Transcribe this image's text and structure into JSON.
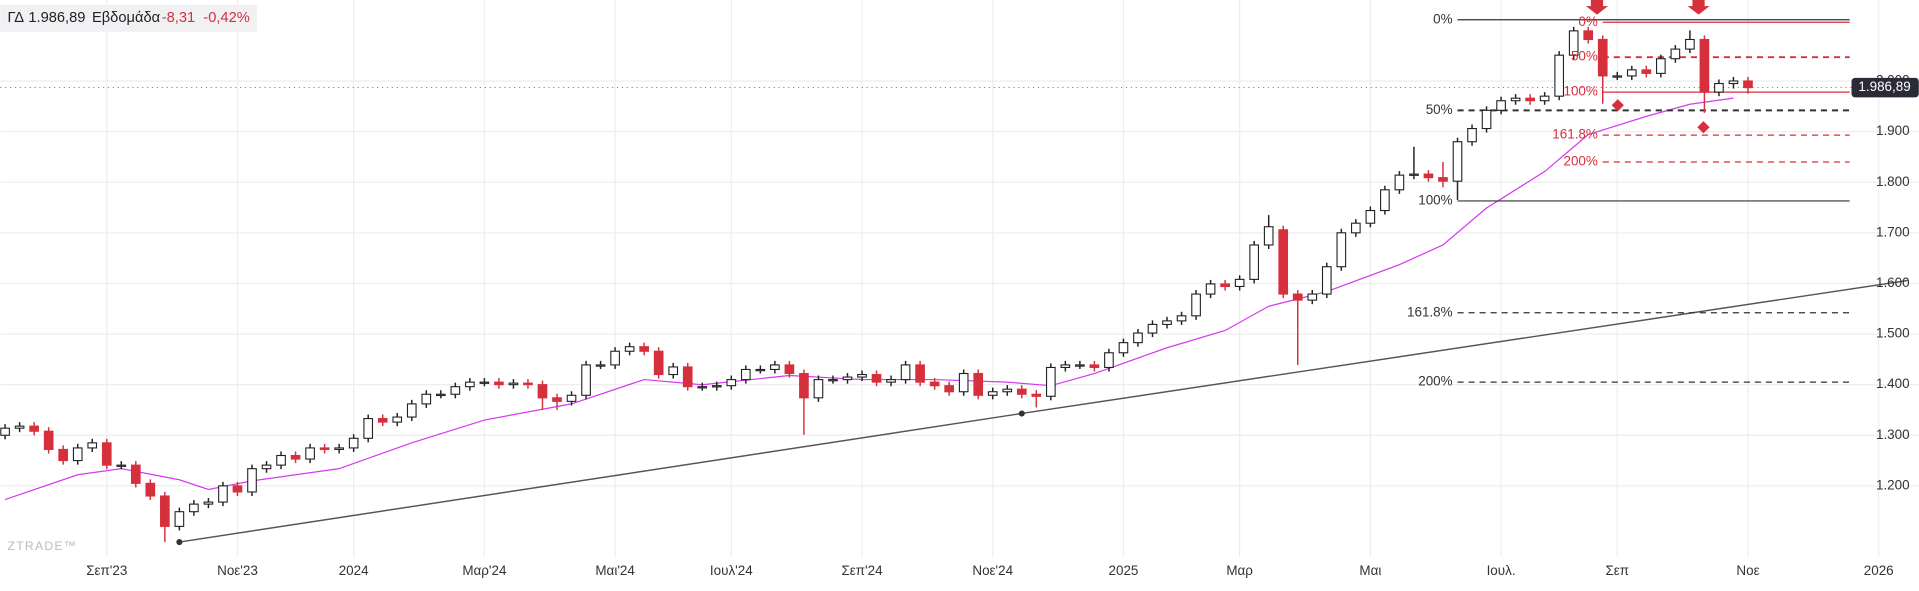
{
  "chart_data": {
    "type": "candlestick",
    "symbol": "ΓΔ",
    "last": {
      "value": 1986.89,
      "label": "1.986,89"
    },
    "period": "Εβδομάδα",
    "change": {
      "value": -8.31,
      "label": "-8,31"
    },
    "change_pct": {
      "value": -0.42,
      "label": "-0,42%"
    },
    "watermark": "ZTRADE™",
    "categories": [
      null,
      null,
      null,
      null,
      null,
      null,
      null,
      "Σεπ'23",
      null,
      null,
      null,
      null,
      null,
      null,
      null,
      null,
      "Νοε'23",
      null,
      null,
      null,
      null,
      null,
      null,
      null,
      "2024",
      null,
      null,
      null,
      null,
      null,
      null,
      null,
      null,
      "Μαρ'24",
      null,
      null,
      null,
      null,
      null,
      null,
      null,
      null,
      "Μαι'24",
      null,
      null,
      null,
      null,
      null,
      null,
      null,
      "Ιουλ'24",
      null,
      null,
      null,
      null,
      null,
      null,
      null,
      null,
      "Σεπ'24",
      null,
      null,
      null,
      null,
      null,
      null,
      null,
      null,
      "Νοε'24",
      null,
      null,
      null,
      null,
      null,
      null,
      null,
      null,
      "2025",
      null,
      null,
      null,
      null,
      null,
      null,
      null,
      "Μαρ",
      null,
      null,
      null,
      null,
      null,
      null,
      null,
      null,
      "Μαι",
      null,
      null,
      null,
      null,
      null,
      null,
      null,
      null,
      "Ιουλ.",
      null,
      null,
      null,
      null,
      null,
      null,
      null,
      "Σεπ",
      null,
      null,
      null,
      null,
      null,
      null,
      null,
      null,
      "Νοε",
      null,
      null,
      null,
      null,
      null,
      null,
      null,
      null,
      "2026",
      null,
      null
    ],
    "open": [
      1300,
      1314,
      1318,
      1308,
      1272,
      1250,
      1275,
      1285,
      1241,
      1241,
      1205,
      1180,
      1120,
      1149,
      1164,
      1168,
      1200,
      1188,
      1234,
      1241,
      1260,
      1253,
      1275,
      1272,
      1275,
      1294,
      1333,
      1326,
      1336,
      1362,
      1381,
      1381,
      1396,
      1405,
      1405,
      1400,
      1403,
      1400,
      1374,
      1367,
      1379,
      1439,
      1439,
      1466,
      1475,
      1466,
      1420,
      1435,
      1396,
      1396,
      1398,
      1410,
      1430,
      1430,
      1439,
      1422,
      1374,
      1410,
      1410,
      1415,
      1420,
      1405,
      1410,
      1439,
      1405,
      1398,
      1386,
      1422,
      1379,
      1386,
      1391,
      1381,
      1377,
      1434,
      1439,
      1439,
      1434,
      1463,
      1483,
      1502,
      1519,
      1526,
      1536,
      1579,
      1599,
      1594,
      1608,
      1676,
      1706,
      1579,
      1567,
      1579,
      1633,
      1700,
      1719,
      1744,
      1785,
      1814,
      1816,
      1809,
      1802,
      1880,
      1906,
      1942,
      1961,
      1966,
      1961,
      1970,
      2051,
      2099,
      2082,
      2010,
      2010,
      2022,
      2015,
      2044,
      2063,
      2082,
      1978,
      1995,
      2000,
      null,
      null,
      null,
      null,
      null,
      null,
      null,
      null,
      null,
      null,
      null
    ],
    "high": [
      1322,
      1326,
      1326,
      1316,
      1280,
      1283,
      1293,
      1293,
      1249,
      1249,
      1213,
      1188,
      1157,
      1172,
      1176,
      1208,
      1208,
      1242,
      1249,
      1268,
      1268,
      1283,
      1283,
      1283,
      1302,
      1341,
      1341,
      1344,
      1370,
      1389,
      1389,
      1404,
      1413,
      1413,
      1413,
      1411,
      1411,
      1408,
      1382,
      1387,
      1447,
      1447,
      1474,
      1483,
      1483,
      1474,
      1443,
      1443,
      1404,
      1406,
      1418,
      1438,
      1438,
      1447,
      1447,
      1430,
      1418,
      1418,
      1423,
      1428,
      1428,
      1418,
      1447,
      1447,
      1413,
      1406,
      1430,
      1430,
      1394,
      1399,
      1399,
      1389,
      1442,
      1447,
      1447,
      1447,
      1471,
      1491,
      1510,
      1527,
      1534,
      1544,
      1587,
      1607,
      1607,
      1616,
      1684,
      1735,
      1714,
      1587,
      1587,
      1641,
      1708,
      1727,
      1752,
      1793,
      1822,
      1870,
      1824,
      1840,
      1888,
      1914,
      1950,
      1969,
      1974,
      1974,
      1978,
      2059,
      2107,
      2107,
      2090,
      2018,
      2030,
      2030,
      2052,
      2071,
      2100,
      2090,
      2003,
      2008,
      2008,
      null,
      null,
      null,
      null,
      null,
      null,
      null,
      null,
      null,
      null,
      null
    ],
    "low": [
      1292,
      1306,
      1300,
      1264,
      1242,
      1242,
      1267,
      1233,
      1233,
      1197,
      1172,
      1089,
      1112,
      1141,
      1156,
      1160,
      1180,
      1180,
      1226,
      1233,
      1245,
      1245,
      1264,
      1264,
      1267,
      1286,
      1318,
      1318,
      1328,
      1354,
      1373,
      1373,
      1388,
      1397,
      1392,
      1392,
      1392,
      1350,
      1350,
      1359,
      1371,
      1431,
      1431,
      1458,
      1458,
      1412,
      1412,
      1388,
      1388,
      1388,
      1390,
      1402,
      1422,
      1422,
      1414,
      1301,
      1366,
      1402,
      1402,
      1407,
      1397,
      1397,
      1402,
      1397,
      1390,
      1378,
      1378,
      1371,
      1371,
      1378,
      1373,
      1355,
      1369,
      1426,
      1431,
      1426,
      1426,
      1455,
      1475,
      1494,
      1511,
      1518,
      1528,
      1571,
      1586,
      1586,
      1600,
      1668,
      1571,
      1439,
      1559,
      1571,
      1625,
      1692,
      1711,
      1736,
      1777,
      1806,
      1801,
      1790,
      1765,
      1872,
      1898,
      1934,
      1953,
      1953,
      1953,
      1962,
      2043,
      2074,
      1955,
      2002,
      2002,
      2007,
      2007,
      2036,
      2055,
      1937,
      1970,
      1985,
      1975,
      null,
      null,
      null,
      null,
      null,
      null,
      null,
      null,
      null,
      null,
      null
    ],
    "close": [
      1314,
      1318,
      1308,
      1272,
      1250,
      1275,
      1285,
      1241,
      1241,
      1205,
      1180,
      1120,
      1149,
      1164,
      1168,
      1200,
      1188,
      1234,
      1241,
      1260,
      1253,
      1275,
      1272,
      1275,
      1294,
      1333,
      1326,
      1336,
      1362,
      1381,
      1381,
      1396,
      1405,
      1405,
      1400,
      1403,
      1400,
      1374,
      1367,
      1379,
      1439,
      1439,
      1466,
      1475,
      1466,
      1420,
      1435,
      1396,
      1396,
      1398,
      1410,
      1430,
      1430,
      1439,
      1422,
      1374,
      1410,
      1410,
      1415,
      1420,
      1405,
      1410,
      1439,
      1405,
      1398,
      1386,
      1422,
      1379,
      1386,
      1391,
      1381,
      1377,
      1434,
      1439,
      1439,
      1434,
      1463,
      1483,
      1502,
      1519,
      1526,
      1536,
      1579,
      1599,
      1594,
      1608,
      1676,
      1712,
      1579,
      1567,
      1579,
      1633,
      1700,
      1719,
      1744,
      1785,
      1814,
      1816,
      1809,
      1802,
      1880,
      1906,
      1942,
      1961,
      1966,
      1961,
      1970,
      2051,
      2099,
      2082,
      2010,
      2010,
      2022,
      2015,
      2044,
      2063,
      2082,
      1978,
      1995,
      2000,
      1986.89,
      null,
      null,
      null,
      null,
      null,
      null,
      null,
      null,
      null,
      null,
      null
    ],
    "up_color": "#ffffff",
    "down_color": "#d6303c",
    "wick_color": "#222222",
    "ylim": [
      1060,
      2160
    ],
    "yticks": [
      {
        "value": 1200,
        "label": "1.200"
      },
      {
        "value": 1300,
        "label": "1.300"
      },
      {
        "value": 1400,
        "label": "1.400"
      },
      {
        "value": 1500,
        "label": "1.500"
      },
      {
        "value": 1600,
        "label": "1.600"
      },
      {
        "value": 1700,
        "label": "1.700"
      },
      {
        "value": 1800,
        "label": "1.800"
      },
      {
        "value": 1900,
        "label": "1.900"
      },
      {
        "value": 2000,
        "label": "2.000"
      }
    ],
    "grid": true,
    "ma": {
      "color": "#d63af0",
      "x": [
        0,
        5,
        8,
        12,
        14,
        17,
        23,
        28,
        33,
        39,
        44,
        48,
        54,
        59,
        64,
        69,
        72,
        75,
        80,
        84,
        87,
        91,
        96,
        99,
        102,
        106,
        109,
        113,
        116,
        119
      ],
      "values": [
        1173,
        1222,
        1234,
        1212,
        1193,
        1210,
        1234,
        1285,
        1330,
        1362,
        1410,
        1400,
        1418,
        1410,
        1410,
        1405,
        1398,
        1422,
        1473,
        1507,
        1555,
        1584,
        1637,
        1676,
        1749,
        1821,
        1894,
        1930,
        1954,
        1966
      ]
    },
    "trendline": {
      "color": "#555555",
      "x": [
        12,
        70,
        131
      ],
      "values": [
        1089,
        1343,
        1606
      ]
    },
    "fibonacci": [
      {
        "color": "#333333",
        "x": [
          100,
          127
        ],
        "levels": [
          {
            "name": "0%",
            "value": 2121
          },
          {
            "name": "50%",
            "value": 1942
          },
          {
            "name": "100%",
            "value": 1763
          },
          {
            "name": "161.8%",
            "value": 1542
          },
          {
            "name": "200%",
            "value": 1405
          }
        ]
      },
      {
        "color": "#d6303c",
        "x": [
          110,
          127
        ],
        "levels": [
          {
            "name": "0%",
            "value": 2116
          },
          {
            "name": "50%",
            "value": 2047
          },
          {
            "name": "100%",
            "value": 1978
          },
          {
            "name": "161.8%",
            "value": 1893
          },
          {
            "name": "200%",
            "value": 1840
          }
        ]
      }
    ]
  }
}
